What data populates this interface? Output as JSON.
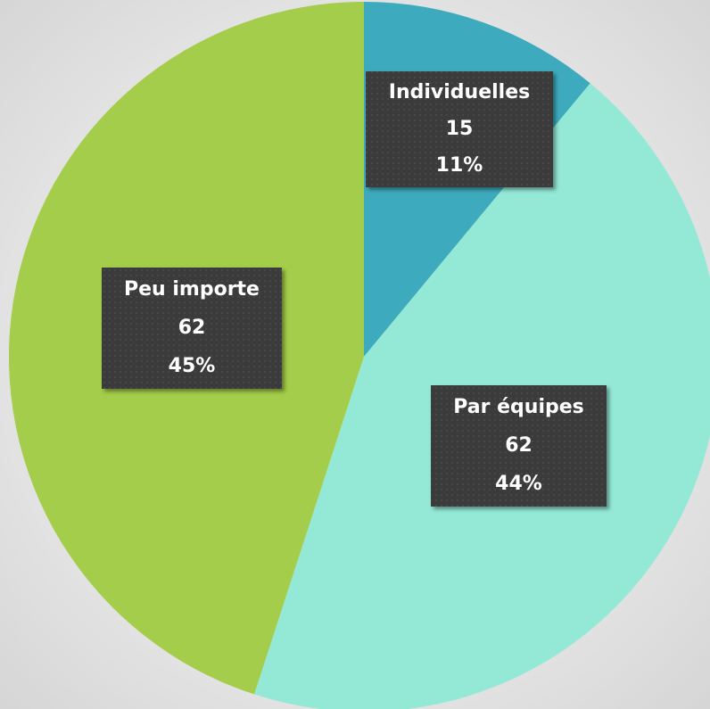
{
  "chart_data": {
    "type": "pie",
    "categories": [
      "Individuelles",
      "Par équipes",
      "Peu importe"
    ],
    "counts": [
      15,
      62,
      62
    ],
    "values": [
      11,
      44,
      45
    ],
    "value_labels": [
      "11%",
      "44%",
      "45%"
    ],
    "colors": [
      "#3dabbd",
      "#94e8d6",
      "#a3cd4a"
    ]
  }
}
